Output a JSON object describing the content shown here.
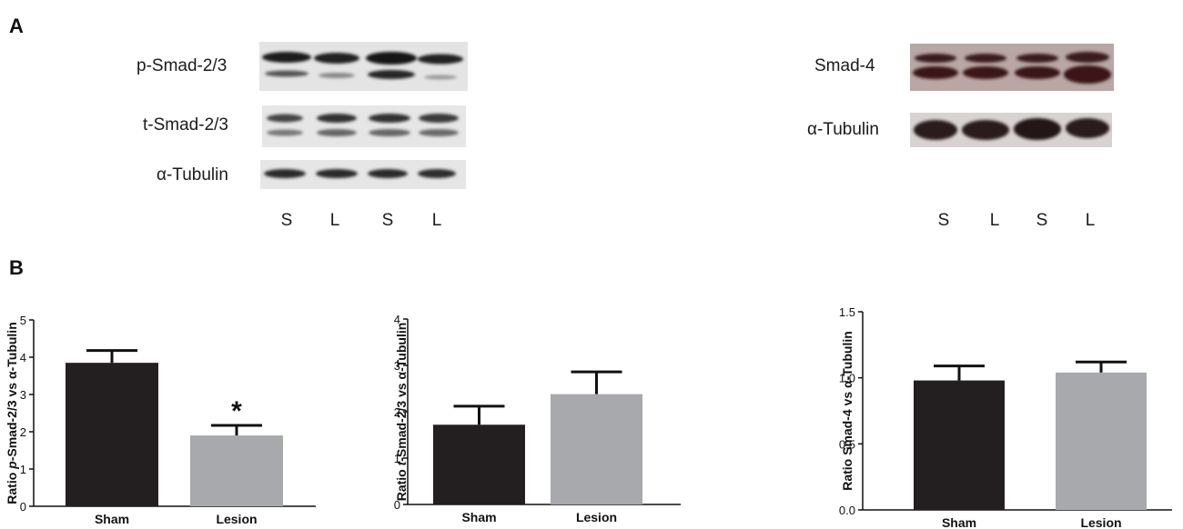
{
  "panel_a": {
    "letter": "A",
    "left_blot": {
      "rows": [
        "p-Smad-2/3",
        "t-Smad-2/3",
        "α-Tubulin"
      ],
      "lanes": [
        "S",
        "L",
        "S",
        "L"
      ]
    },
    "right_blot": {
      "rows": [
        "Smad-4",
        "α-Tubulin"
      ],
      "lanes": [
        "S",
        "L",
        "S",
        "L"
      ]
    }
  },
  "panel_b": {
    "letter": "B"
  },
  "colors": {
    "sham": "#231f20",
    "lesion": "#a7a9ac"
  },
  "chart_data": [
    {
      "type": "bar",
      "categories": [
        "Sham",
        "Lesion"
      ],
      "values": [
        3.85,
        1.9
      ],
      "errors": [
        0.33,
        0.27
      ],
      "ylabel_prefix": "Ratio ",
      "ylabel_italic": "p",
      "ylabel_suffix": "-Smad-2/3 vs α-Tubulin",
      "ylim": [
        0,
        5
      ],
      "yticks": [
        "0",
        "1",
        "2",
        "3",
        "4",
        "5"
      ],
      "annotations": [
        {
          "category": "Lesion",
          "text": "*"
        }
      ]
    },
    {
      "type": "bar",
      "categories": [
        "Sham",
        "Lesion"
      ],
      "values": [
        1.72,
        2.38
      ],
      "errors": [
        0.4,
        0.48
      ],
      "ylabel_prefix": "Ratio ",
      "ylabel_italic": "t",
      "ylabel_suffix": "-Smad-2/3 vs α-Tubulin",
      "ylim": [
        0,
        4
      ],
      "yticks": [
        "0",
        "1",
        "2",
        "3",
        "4"
      ],
      "annotations": []
    },
    {
      "type": "bar",
      "categories": [
        "Sham",
        "Lesion"
      ],
      "values": [
        0.98,
        1.04
      ],
      "errors": [
        0.11,
        0.08
      ],
      "ylabel_prefix": "Ratio ",
      "ylabel_italic": "",
      "ylabel_suffix": "Smad-4 vs α-Tubulin",
      "ylim": [
        0,
        1.5
      ],
      "yticks": [
        "0.0",
        "0.5",
        "1.0",
        "1.5"
      ],
      "annotations": []
    }
  ]
}
